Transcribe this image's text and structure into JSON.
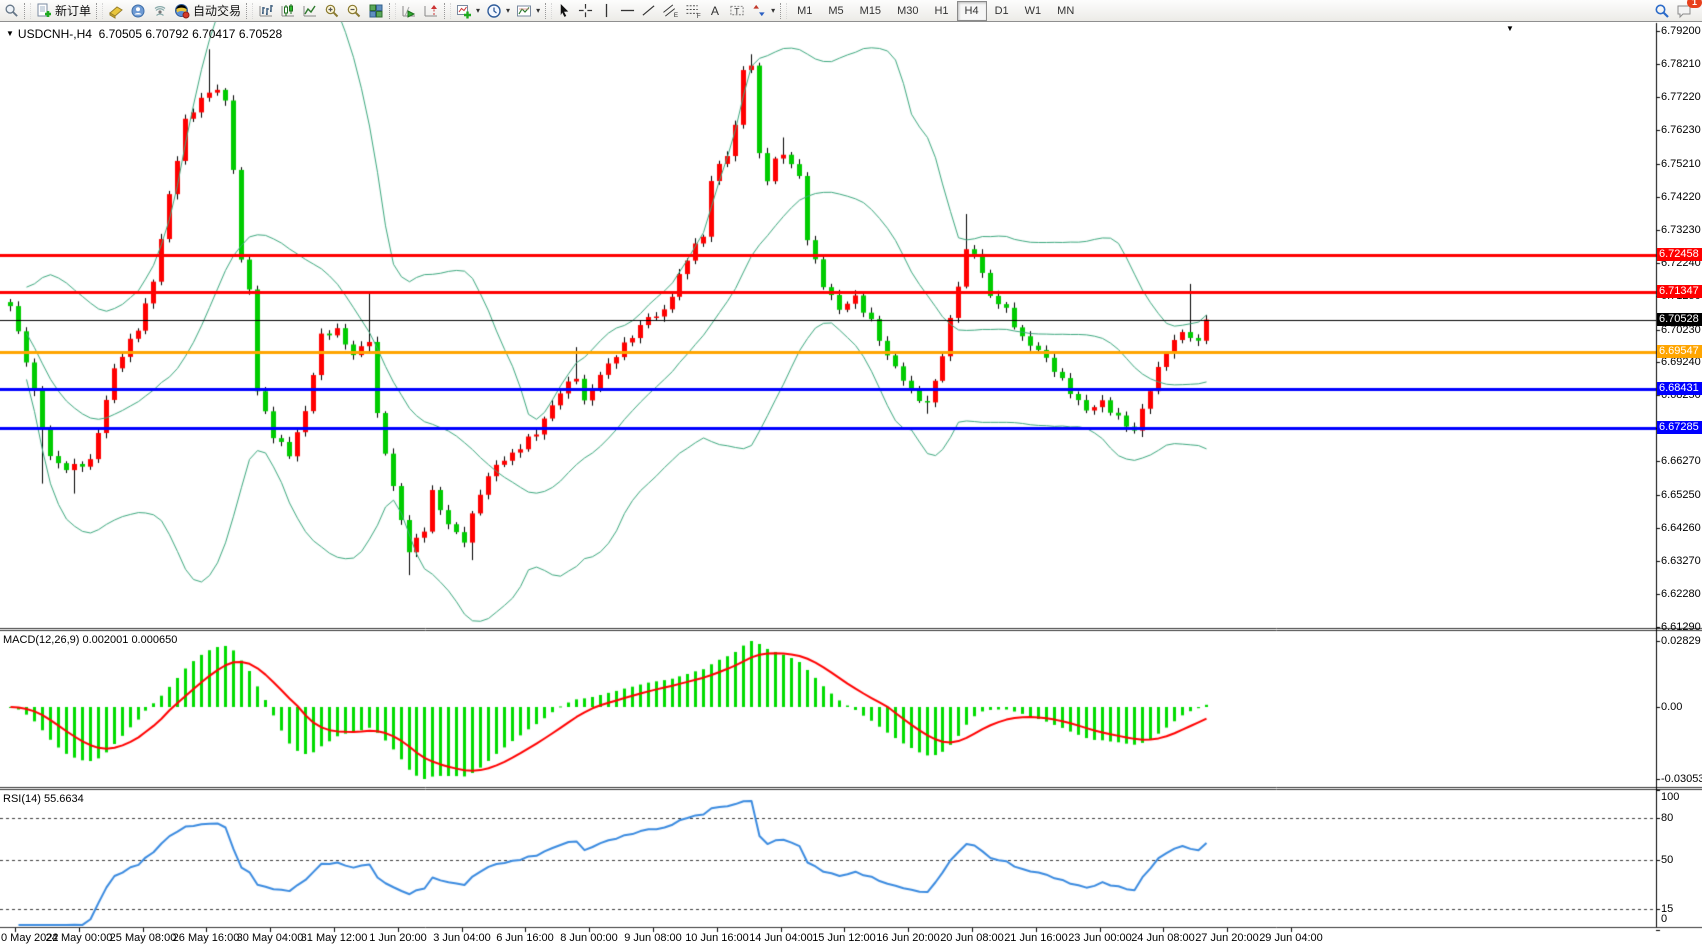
{
  "toolbar": {
    "new_order_label": "新订单",
    "auto_trading_label": "自动交易",
    "timeframes": [
      "M1",
      "M5",
      "M15",
      "M30",
      "H1",
      "H4",
      "D1",
      "W1",
      "MN"
    ],
    "active_timeframe": "H4",
    "notification_badge": "1",
    "icons": [
      "symbol-search-icon",
      "new-order-icon",
      "metaeditor-icon",
      "community-icon",
      "signals-icon",
      "auto-trading-icon",
      "bar-chart-icon",
      "candlestick-chart-icon",
      "line-chart-icon",
      "zoom-in-icon",
      "zoom-out-icon",
      "tile-windows-icon",
      "auto-scroll-icon",
      "chart-shift-icon",
      "indicators-icon",
      "periods-icon",
      "templates-icon",
      "cursor-icon",
      "crosshair-icon",
      "vertical-line-icon",
      "horizontal-line-icon",
      "trendline-icon",
      "equidistant-channel-icon",
      "fibonacci-icon",
      "text-icon",
      "text-label-icon",
      "arrows-icon",
      "search-icon",
      "chat-icon"
    ]
  },
  "chart_data": {
    "type": "candlestick",
    "symbol": "USDCNH-,H4",
    "ohlc_readout": {
      "open": "6.70505",
      "high": "6.70792",
      "low": "6.70417",
      "close": "6.70528"
    },
    "price_axis": {
      "ticks": [
        "6.79200",
        "6.78210",
        "6.77220",
        "6.76230",
        "6.75210",
        "6.74220",
        "6.73230",
        "6.72240",
        "6.71250",
        "6.70230",
        "6.69240",
        "6.68250",
        "6.67260",
        "6.66270",
        "6.65250",
        "6.64260",
        "6.63270",
        "6.62280",
        "6.61290"
      ],
      "current": 6.70528
    },
    "hlines": [
      {
        "price": 6.72458,
        "label": "6.72458",
        "color": "#FF0000",
        "thickness": 3
      },
      {
        "price": 6.71347,
        "label": "6.71347",
        "color": "#FF0000",
        "thickness": 3
      },
      {
        "price": 6.70528,
        "label": "6.70528",
        "color": "#000000",
        "thickness": 1,
        "role": "current-price"
      },
      {
        "price": 6.69547,
        "label": "6.69547",
        "color": "#FFA500",
        "thickness": 3
      },
      {
        "price": 6.68431,
        "label": "6.68431",
        "color": "#0000FF",
        "thickness": 3
      },
      {
        "price": 6.67285,
        "label": "6.67285",
        "color": "#0000FF",
        "thickness": 3
      }
    ],
    "time_axis": {
      "labels": [
        "0 May 2022",
        "24 May 00:00",
        "25 May 08:00",
        "26 May 16:00",
        "30 May 04:00",
        "31 May 12:00",
        "1 Jun 20:00",
        "3 Jun 04:00",
        "6 Jun 16:00",
        "8 Jun 00:00",
        "9 Jun 08:00",
        "10 Jun 16:00",
        "14 Jun 04:00",
        "15 Jun 12:00",
        "16 Jun 20:00",
        "20 Jun 08:00",
        "21 Jun 16:00",
        "23 Jun 00:00",
        "24 Jun 08:00",
        "27 Jun 20:00",
        "29 Jun 04:00"
      ]
    },
    "bars": {
      "close_anchors": [
        [
          0,
          6.709
        ],
        [
          2,
          6.693
        ],
        [
          5,
          6.664
        ],
        [
          7,
          6.66
        ],
        [
          10,
          6.663
        ],
        [
          11,
          6.672
        ],
        [
          13,
          6.69
        ],
        [
          16,
          6.703
        ],
        [
          18,
          6.717
        ],
        [
          20,
          6.742
        ],
        [
          22,
          6.765
        ],
        [
          24,
          6.772
        ],
        [
          26,
          6.7745
        ],
        [
          27,
          6.77
        ],
        [
          28,
          6.751
        ],
        [
          29,
          6.723
        ],
        [
          30,
          6.715
        ],
        [
          31,
          6.684
        ],
        [
          33,
          6.67
        ],
        [
          35,
          6.665
        ],
        [
          37,
          6.678
        ],
        [
          39,
          6.7
        ],
        [
          41,
          6.702
        ],
        [
          43,
          6.695
        ],
        [
          45,
          6.699
        ],
        [
          46,
          6.676
        ],
        [
          48,
          6.655
        ],
        [
          50,
          6.636
        ],
        [
          52,
          6.642
        ],
        [
          53,
          6.653
        ],
        [
          55,
          6.644
        ],
        [
          57,
          6.639
        ],
        [
          59,
          6.653
        ],
        [
          61,
          6.662
        ],
        [
          63,
          6.665
        ],
        [
          66,
          6.671
        ],
        [
          69,
          6.684
        ],
        [
          71,
          6.688
        ],
        [
          72,
          6.68
        ],
        [
          74,
          6.689
        ],
        [
          76,
          6.695
        ],
        [
          78,
          6.7
        ],
        [
          80,
          6.706
        ],
        [
          82,
          6.708
        ],
        [
          86,
          6.728
        ],
        [
          87,
          6.73
        ],
        [
          88,
          6.748
        ],
        [
          90,
          6.755
        ],
        [
          91,
          6.763
        ],
        [
          92,
          6.78
        ],
        [
          93,
          6.782
        ],
        [
          94,
          6.755
        ],
        [
          95,
          6.748
        ],
        [
          96,
          6.753
        ],
        [
          97,
          6.755
        ],
        [
          99,
          6.748
        ],
        [
          100,
          6.73
        ],
        [
          102,
          6.716
        ],
        [
          104,
          6.708
        ],
        [
          106,
          6.712
        ],
        [
          108,
          6.705
        ],
        [
          110,
          6.694
        ],
        [
          113,
          6.684
        ],
        [
          115,
          6.68
        ],
        [
          117,
          6.694
        ],
        [
          119,
          6.716
        ],
        [
          120,
          6.726
        ],
        [
          121,
          6.726
        ],
        [
          123,
          6.712
        ],
        [
          125,
          6.708
        ],
        [
          127,
          6.7
        ],
        [
          129,
          6.696
        ],
        [
          131,
          6.69
        ],
        [
          133,
          6.684
        ],
        [
          135,
          6.678
        ],
        [
          137,
          6.68
        ],
        [
          139,
          6.676
        ],
        [
          141,
          6.672
        ],
        [
          143,
          6.684
        ],
        [
          145,
          6.696
        ],
        [
          147,
          6.702
        ],
        [
          149,
          6.698
        ],
        [
          150,
          6.70528
        ]
      ],
      "spike_highs": [
        [
          25,
          6.7865
        ],
        [
          45,
          6.713
        ],
        [
          71,
          6.697
        ],
        [
          93,
          6.785
        ],
        [
          97,
          6.76
        ],
        [
          120,
          6.737
        ],
        [
          148,
          6.716
        ]
      ],
      "spike_lows": [
        [
          4,
          6.656
        ],
        [
          8,
          6.653
        ],
        [
          50,
          6.6285
        ],
        [
          58,
          6.633
        ],
        [
          115,
          6.677
        ],
        [
          142,
          6.67
        ]
      ]
    },
    "indicators": {
      "bollinger": {
        "period": 20,
        "deviation": 2,
        "color": "#3CA87E"
      },
      "macd": {
        "label": "MACD(12,26,9)",
        "value": "0.002001",
        "signal_value": "0.000650",
        "axis_ticks": [
          "0.02829",
          "0.00",
          "-0.030537"
        ],
        "histogram_color": "#00DC00",
        "signal_color": "#FF0000"
      },
      "rsi": {
        "label": "RSI(14)",
        "value": "55.6634",
        "axis_ticks": [
          "100",
          "80",
          "50",
          "15",
          "0"
        ],
        "levels": [
          80,
          50,
          15
        ],
        "color": "#3B8BE0"
      }
    },
    "colors": {
      "bull_body": "#FF0000",
      "bear_body": "#00CC00",
      "wick": "#000000",
      "background": "#FFFFFF"
    }
  }
}
